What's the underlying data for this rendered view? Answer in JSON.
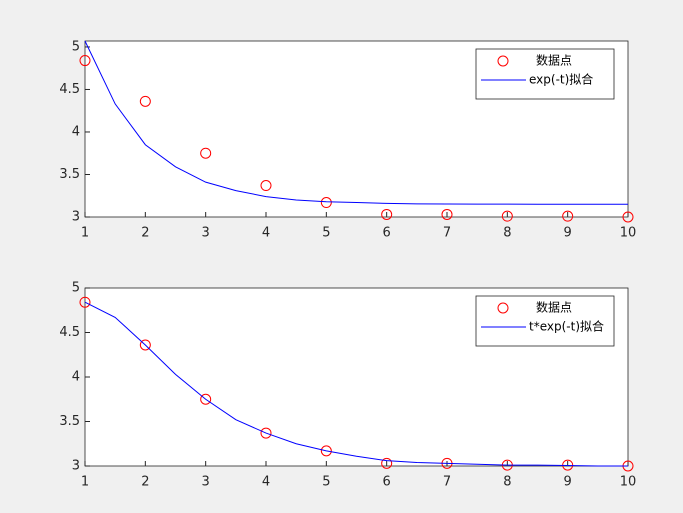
{
  "chart_data": [
    {
      "type": "line",
      "xlim": [
        1,
        10
      ],
      "ylim": [
        3,
        5.07
      ],
      "xticks": [
        1,
        2,
        3,
        4,
        5,
        6,
        7,
        8,
        9,
        10
      ],
      "yticks": [
        3,
        3.5,
        4,
        4.5,
        5
      ],
      "legend": "northeast",
      "series": [
        {
          "name": "数据点",
          "color": "#ff0000",
          "marker": "o",
          "x": [
            1,
            2,
            3,
            4,
            5,
            6,
            7,
            8,
            9,
            10
          ],
          "values": [
            4.84,
            4.36,
            3.75,
            3.37,
            3.17,
            3.03,
            3.03,
            3.01,
            3.01,
            3.0
          ]
        },
        {
          "name": "exp(-t)拟合",
          "color": "#0000ff",
          "x": [
            1,
            1.5,
            2,
            2.5,
            3,
            3.5,
            4,
            4.5,
            5,
            5.5,
            6,
            6.5,
            7,
            7.5,
            8,
            8.5,
            9,
            9.5,
            10
          ],
          "values": [
            5.07,
            4.33,
            3.85,
            3.59,
            3.41,
            3.31,
            3.24,
            3.2,
            3.18,
            3.17,
            3.16,
            3.155,
            3.153,
            3.152,
            3.151,
            3.15,
            3.15,
            3.15,
            3.15
          ]
        }
      ]
    },
    {
      "type": "line",
      "xlim": [
        1,
        10
      ],
      "ylim": [
        3,
        5
      ],
      "xticks": [
        1,
        2,
        3,
        4,
        5,
        6,
        7,
        8,
        9,
        10
      ],
      "yticks": [
        3,
        3.5,
        4,
        4.5,
        5
      ],
      "legend": "northeast",
      "series": [
        {
          "name": "数据点",
          "color": "#ff0000",
          "marker": "o",
          "x": [
            1,
            2,
            3,
            4,
            5,
            6,
            7,
            8,
            9,
            10
          ],
          "values": [
            4.84,
            4.36,
            3.75,
            3.37,
            3.17,
            3.03,
            3.03,
            3.01,
            3.01,
            3.0
          ]
        },
        {
          "name": "t*exp(-t)拟合",
          "color": "#0000ff",
          "x": [
            1,
            1.5,
            2,
            2.5,
            3,
            3.5,
            4,
            4.5,
            5,
            5.5,
            6,
            6.5,
            7,
            7.5,
            8,
            8.5,
            9,
            9.5,
            10
          ],
          "values": [
            4.84,
            4.67,
            4.36,
            4.03,
            3.75,
            3.52,
            3.37,
            3.25,
            3.17,
            3.11,
            3.06,
            3.04,
            3.03,
            3.02,
            3.01,
            3.01,
            3.005,
            3.0,
            3.0
          ]
        }
      ]
    }
  ]
}
